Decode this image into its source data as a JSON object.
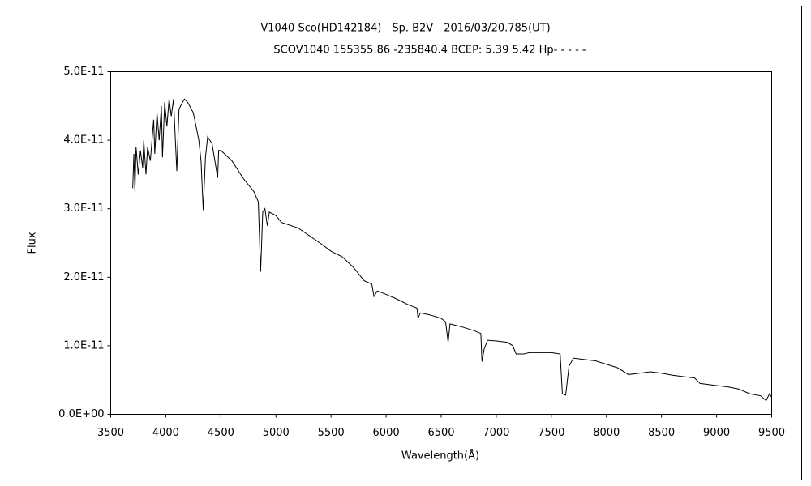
{
  "chart_data": {
    "type": "line",
    "title": "V1040 Sco(HD142184)　Sp. B2V　2016/03/20.785(UT)",
    "subtitle": "SCOV1040 155355.86 -235840.4 BCEP: 5.39 5.42 Hp- - - - -",
    "x_label": "Wavelength(Å)",
    "y_label": "Flux",
    "xlim": [
      3500,
      9500
    ],
    "xticks": [
      3500,
      4000,
      4500,
      5000,
      5500,
      6000,
      6500,
      7000,
      7500,
      8000,
      8500,
      9000,
      9500
    ],
    "ylim": [
      0,
      5e-11
    ],
    "yticks": [
      {
        "value": 0,
        "label": "0.0E+00"
      },
      {
        "value": 1e-11,
        "label": "1.0E-11"
      },
      {
        "value": 2e-11,
        "label": "2.0E-11"
      },
      {
        "value": 3e-11,
        "label": "3.0E-11"
      },
      {
        "value": 4e-11,
        "label": "4.0E-11"
      },
      {
        "value": 5e-11,
        "label": "5.0E-11"
      }
    ],
    "grid": false,
    "series": [
      {
        "color": "#000000",
        "x": [
          3700,
          3710,
          3720,
          3730,
          3750,
          3770,
          3790,
          3800,
          3820,
          3835,
          3860,
          3890,
          3900,
          3920,
          3940,
          3960,
          3970,
          3990,
          4010,
          4030,
          4050,
          4070,
          4100,
          4120,
          4150,
          4170,
          4200,
          4250,
          4300,
          4320,
          4340,
          4360,
          4380,
          4400,
          4420,
          4471,
          4480,
          4500,
          4600,
          4700,
          4800,
          4840,
          4861,
          4880,
          4900,
          4922,
          4940,
          5000,
          5050,
          5200,
          5400,
          5500,
          5600,
          5700,
          5800,
          5870,
          5890,
          5920,
          6000,
          6100,
          6200,
          6280,
          6290,
          6310,
          6400,
          6500,
          6540,
          6563,
          6580,
          6700,
          6800,
          6860,
          6870,
          6890,
          6920,
          7000,
          7100,
          7150,
          7180,
          7250,
          7300,
          7400,
          7500,
          7580,
          7600,
          7630,
          7660,
          7700,
          7800,
          7900,
          8000,
          8100,
          8200,
          8300,
          8400,
          8500,
          8600,
          8700,
          8800,
          8850,
          9000,
          9100,
          9200,
          9300,
          9400,
          9450,
          9480,
          9500
        ],
        "values": [
          3.3e-11,
          3.8e-11,
          3.25e-11,
          3.9e-11,
          3.5e-11,
          3.85e-11,
          3.6e-11,
          4e-11,
          3.5e-11,
          3.9e-11,
          3.7e-11,
          4.3e-11,
          3.8e-11,
          4.4e-11,
          4e-11,
          4.5e-11,
          3.75e-11,
          4.55e-11,
          4.2e-11,
          4.6e-11,
          4.35e-11,
          4.6e-11,
          3.55e-11,
          4.45e-11,
          4.55e-11,
          4.6e-11,
          4.55e-11,
          4.4e-11,
          4e-11,
          3.7e-11,
          2.98e-11,
          3.75e-11,
          4.05e-11,
          4e-11,
          3.95e-11,
          3.45e-11,
          3.85e-11,
          3.85e-11,
          3.7e-11,
          3.45e-11,
          3.25e-11,
          3.1e-11,
          2.08e-11,
          2.95e-11,
          3e-11,
          2.75e-11,
          2.95e-11,
          2.9e-11,
          2.8e-11,
          2.72e-11,
          2.5e-11,
          2.38e-11,
          2.3e-11,
          2.15e-11,
          1.95e-11,
          1.9e-11,
          1.72e-11,
          1.8e-11,
          1.75e-11,
          1.68e-11,
          1.6e-11,
          1.55e-11,
          1.4e-11,
          1.48e-11,
          1.45e-11,
          1.4e-11,
          1.35e-11,
          1.05e-11,
          1.32e-11,
          1.27e-11,
          1.22e-11,
          1.18e-11,
          7.7e-12,
          9.5e-12,
          1.08e-11,
          1.07e-11,
          1.05e-11,
          1e-11,
          8.8e-12,
          8.8e-12,
          9e-12,
          9e-12,
          9e-12,
          8.8e-12,
          3e-12,
          2.8e-12,
          7e-12,
          8.2e-12,
          8e-12,
          7.8e-12,
          7.3e-12,
          6.8e-12,
          5.8e-12,
          6e-12,
          6.2e-12,
          6e-12,
          5.7e-12,
          5.5e-12,
          5.3e-12,
          4.5e-12,
          4.2e-12,
          4e-12,
          3.7e-12,
          3e-12,
          2.7e-12,
          2e-12,
          3e-12,
          2.5e-12
        ]
      }
    ]
  }
}
